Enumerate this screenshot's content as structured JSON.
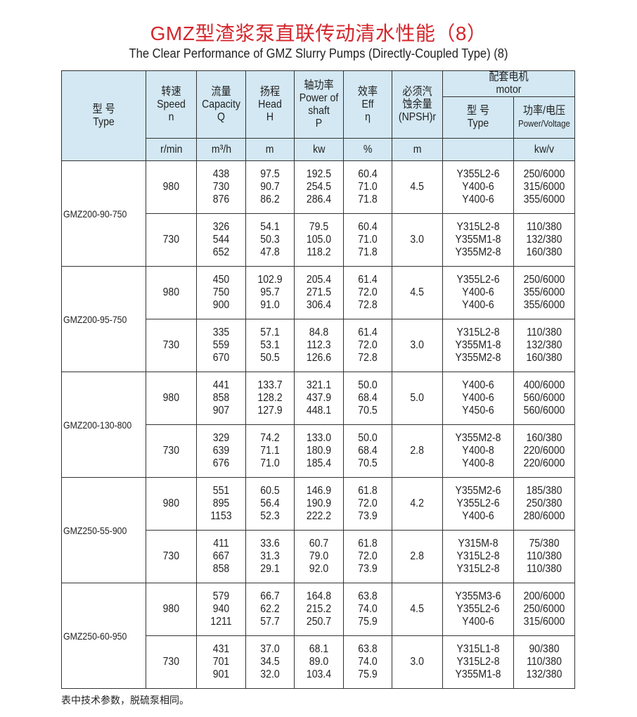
{
  "title": "GMZ型渣浆泵直联传动清水性能（8）",
  "subtitle": "The Clear Performance of GMZ Slurry Pumps (Directly-Coupled Type) (8)",
  "headers": {
    "type": [
      "型  号",
      "Type"
    ],
    "speed": [
      "转速",
      "Speed",
      "n"
    ],
    "capacity": [
      "流量",
      "Capacity",
      "Q"
    ],
    "head": [
      "扬程",
      "Head",
      "H"
    ],
    "power": [
      "轴功率",
      "Power of",
      "shaft",
      "P"
    ],
    "eff": [
      "效率",
      "Eff",
      "η"
    ],
    "npsh": [
      "必须汽",
      "蚀余量",
      "(NPSH)r"
    ],
    "motor": [
      "配套电机",
      "motor"
    ],
    "motor_type": [
      "型  号",
      "Type"
    ],
    "motor_pv": [
      "功率/电压",
      "Power/Voltage"
    ]
  },
  "units": {
    "speed": "r/min",
    "capacity": "m³/h",
    "head": "m",
    "power": "kw",
    "eff": "%",
    "npsh": "m",
    "motor_type": "",
    "motor_pv": "kw/v"
  },
  "rows": [
    {
      "model": "GMZ200-90-750",
      "groups": [
        {
          "speed": "980",
          "q": [
            "438",
            "730",
            "876"
          ],
          "h": [
            "97.5",
            "90.7",
            "86.2"
          ],
          "p": [
            "192.5",
            "254.5",
            "286.4"
          ],
          "eff": [
            "60.4",
            "71.0",
            "71.8"
          ],
          "npsh": "4.5",
          "motor": [
            "Y355L2-6",
            "Y400-6",
            "Y400-6"
          ],
          "pv": [
            "250/6000",
            "315/6000",
            "355/6000"
          ]
        },
        {
          "speed": "730",
          "q": [
            "326",
            "544",
            "652"
          ],
          "h": [
            "54.1",
            "50.3",
            "47.8"
          ],
          "p": [
            "79.5",
            "105.0",
            "118.2"
          ],
          "eff": [
            "60.4",
            "71.0",
            "71.8"
          ],
          "npsh": "3.0",
          "motor": [
            "Y315L2-8",
            "Y355M1-8",
            "Y355M2-8"
          ],
          "pv": [
            "110/380",
            "132/380",
            "160/380"
          ]
        }
      ]
    },
    {
      "model": "GMZ200-95-750",
      "groups": [
        {
          "speed": "980",
          "q": [
            "450",
            "750",
            "900"
          ],
          "h": [
            "102.9",
            "95.7",
            "91.0"
          ],
          "p": [
            "205.4",
            "271.5",
            "306.4"
          ],
          "eff": [
            "61.4",
            "72.0",
            "72.8"
          ],
          "npsh": "4.5",
          "motor": [
            "Y355L2-6",
            "Y400-6",
            "Y400-6"
          ],
          "pv": [
            "250/6000",
            "355/6000",
            "355/6000"
          ]
        },
        {
          "speed": "730",
          "q": [
            "335",
            "559",
            "670"
          ],
          "h": [
            "57.1",
            "53.1",
            "50.5"
          ],
          "p": [
            "84.8",
            "112.3",
            "126.6"
          ],
          "eff": [
            "61.4",
            "72.0",
            "72.8"
          ],
          "npsh": "3.0",
          "motor": [
            "Y315L2-8",
            "Y355M1-8",
            "Y355M2-8"
          ],
          "pv": [
            "110/380",
            "132/380",
            "160/380"
          ]
        }
      ]
    },
    {
      "model": "GMZ200-130-800",
      "groups": [
        {
          "speed": "980",
          "q": [
            "441",
            "858",
            "907"
          ],
          "h": [
            "133.7",
            "128.2",
            "127.9"
          ],
          "p": [
            "321.1",
            "437.9",
            "448.1"
          ],
          "eff": [
            "50.0",
            "68.4",
            "70.5"
          ],
          "npsh": "5.0",
          "motor": [
            "Y400-6",
            "Y400-6",
            "Y450-6"
          ],
          "pv": [
            "400/6000",
            "560/6000",
            "560/6000"
          ]
        },
        {
          "speed": "730",
          "q": [
            "329",
            "639",
            "676"
          ],
          "h": [
            "74.2",
            "71.1",
            "71.0"
          ],
          "p": [
            "133.0",
            "180.9",
            "185.4"
          ],
          "eff": [
            "50.0",
            "68.4",
            "70.5"
          ],
          "npsh": "2.8",
          "motor": [
            "Y355M2-8",
            "Y400-8",
            "Y400-8"
          ],
          "pv": [
            "160/380",
            "220/6000",
            "220/6000"
          ]
        }
      ]
    },
    {
      "model": "GMZ250-55-900",
      "groups": [
        {
          "speed": "980",
          "q": [
            "551",
            "895",
            "1153"
          ],
          "h": [
            "60.5",
            "56.4",
            "52.3"
          ],
          "p": [
            "146.9",
            "190.9",
            "222.2"
          ],
          "eff": [
            "61.8",
            "72.0",
            "73.9"
          ],
          "npsh": "4.2",
          "motor": [
            "Y355M2-6",
            "Y355L2-6",
            "Y400-6"
          ],
          "pv": [
            "185/380",
            "250/380",
            "280/6000"
          ]
        },
        {
          "speed": "730",
          "q": [
            "411",
            "667",
            "858"
          ],
          "h": [
            "33.6",
            "31.3",
            "29.1"
          ],
          "p": [
            "60.7",
            "79.0",
            "92.0"
          ],
          "eff": [
            "61.8",
            "72.0",
            "73.9"
          ],
          "npsh": "2.8",
          "motor": [
            "Y315M-8",
            "Y315L2-8",
            "Y315L2-8"
          ],
          "pv": [
            "75/380",
            "110/380",
            "110/380"
          ]
        }
      ]
    },
    {
      "model": "GMZ250-60-950",
      "groups": [
        {
          "speed": "980",
          "q": [
            "579",
            "940",
            "1211"
          ],
          "h": [
            "66.7",
            "62.2",
            "57.7"
          ],
          "p": [
            "164.8",
            "215.2",
            "250.7"
          ],
          "eff": [
            "63.8",
            "74.0",
            "75.9"
          ],
          "npsh": "4.5",
          "motor": [
            "Y355M3-6",
            "Y355L2-6",
            "Y400-6"
          ],
          "pv": [
            "200/6000",
            "250/6000",
            "315/6000"
          ]
        },
        {
          "speed": "730",
          "q": [
            "431",
            "701",
            "901"
          ],
          "h": [
            "37.0",
            "34.5",
            "32.0"
          ],
          "p": [
            "68.1",
            "89.0",
            "103.4"
          ],
          "eff": [
            "63.8",
            "74.0",
            "75.9"
          ],
          "npsh": "3.0",
          "motor": [
            "Y315L1-8",
            "Y315L2-8",
            "Y355M1-8"
          ],
          "pv": [
            "90/380",
            "110/380",
            "132/380"
          ]
        }
      ]
    }
  ],
  "note": "表中技术参数，脱硫泵相同。"
}
